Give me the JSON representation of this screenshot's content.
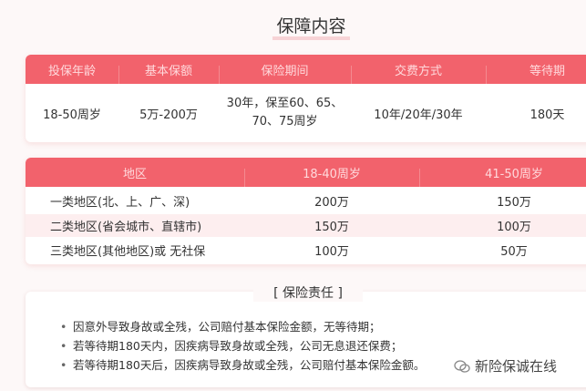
{
  "title": "保障内容",
  "table1": {
    "headers": [
      "投保年龄",
      "基本保额",
      "保险期间",
      "交费方式",
      "等待期"
    ],
    "row": [
      "18-50周岁",
      "5万-200万",
      "30年，保至60、65、70、75周岁",
      "10年/20年/30年",
      "180天"
    ]
  },
  "table2": {
    "headers": [
      "地区",
      "18-40周岁",
      "41-50周岁"
    ],
    "rows": [
      [
        "一类地区(北、上、广、深)",
        "200万",
        "150万"
      ],
      [
        "二类地区(省会城市、直辖市)",
        "150万",
        "100万"
      ],
      [
        "三类地区(其他地区)或 无社保",
        "100万",
        "50万"
      ]
    ]
  },
  "duty": {
    "title": "[ 保险责任 ]",
    "items": [
      "因意外导致身故或全残，公司赔付基本保险金额，无等待期；",
      "若等待期180天内，因疾病导致身故或全残，公司无息退还保费；",
      "若等待期180天后，因疾病导致身故或全残，公司赔付基本保险金额。"
    ]
  },
  "watermark": "新险保诚在线",
  "colors": {
    "header": "#f2626c",
    "stripe": "#fdeeef"
  }
}
